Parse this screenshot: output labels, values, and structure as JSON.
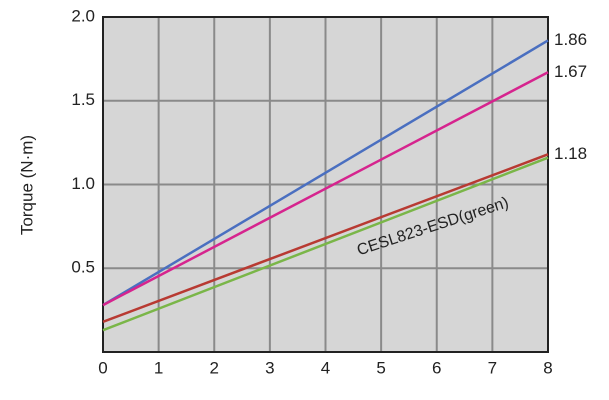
{
  "chart_data": {
    "type": "line",
    "y_label": "Torque (N·m)",
    "annotation": "CESL823-ESD(green)",
    "x": [
      0,
      8
    ],
    "series": [
      {
        "color": "#4a6fc0",
        "values": [
          0.28,
          1.86
        ],
        "value_labels": [
          null,
          "1.86"
        ]
      },
      {
        "color": "#d6248e",
        "values": [
          0.28,
          1.67
        ],
        "value_labels": [
          null,
          "1.67"
        ]
      },
      {
        "color": "#b83a32",
        "values": [
          0.18,
          1.18
        ],
        "value_labels": [
          null,
          "1.18"
        ]
      },
      {
        "color": "#7ab648",
        "values": [
          0.13,
          1.16
        ]
      }
    ],
    "xlim": [
      0,
      8
    ],
    "xticks": [
      0,
      1,
      2,
      3,
      4,
      5,
      6,
      7,
      8
    ],
    "ylim": [
      0,
      2
    ],
    "yticks": [
      0.5,
      {
        "value": 1,
        "label": "1.0"
      },
      1.5,
      {
        "value": 2,
        "label": "2.0"
      }
    ],
    "grid": true
  }
}
